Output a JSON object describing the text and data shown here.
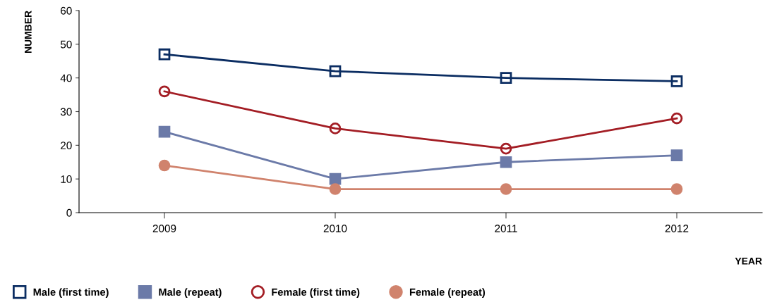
{
  "chart_data": {
    "type": "line",
    "xlabel": "YEAR",
    "ylabel": "NUMBER",
    "categories": [
      "2009",
      "2010",
      "2011",
      "2012"
    ],
    "ylim": [
      0,
      60
    ],
    "yticks": [
      0,
      10,
      20,
      30,
      40,
      50,
      60
    ],
    "grid": false,
    "legend": "bottom left",
    "line_style": "solid",
    "series": [
      {
        "name": "Male (first time)",
        "color": "#0b2d62",
        "marker": "square",
        "values": [
          47,
          42,
          40,
          39
        ]
      },
      {
        "name": "Male (repeat)",
        "color": "#6b7aa8",
        "marker": "square",
        "values": [
          24,
          10,
          15,
          17
        ]
      },
      {
        "name": "Female (first time)",
        "color": "#a31d24",
        "marker": "circle",
        "values": [
          36,
          25,
          19,
          28
        ]
      },
      {
        "name": "Female (repeat)",
        "color": "#d0836d",
        "marker": "circle",
        "values": [
          14,
          7,
          7,
          7
        ]
      }
    ]
  }
}
